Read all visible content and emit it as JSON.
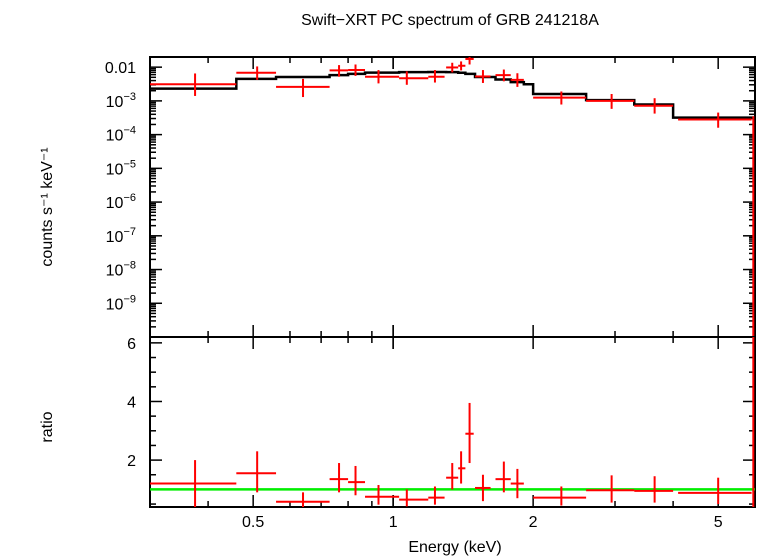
{
  "chart_data": {
    "type": "scatter",
    "title": "Swift−XRT PC spectrum of GRB 241218A",
    "xlabel": "Energy (keV)",
    "xscale": "log",
    "xlim": [
      0.3,
      6.0
    ],
    "xticks": [
      {
        "value": 0.5,
        "label": "0.5"
      },
      {
        "value": 1,
        "label": "1"
      },
      {
        "value": 2,
        "label": "2"
      },
      {
        "value": 5,
        "label": "5"
      }
    ],
    "panels": [
      {
        "ylabel": "counts s⁻¹ keV⁻¹",
        "yscale": "log",
        "ylim": [
          1e-10,
          0.02
        ],
        "ytick_labels": [
          {
            "value": 0.01,
            "base": "0.01",
            "exp": ""
          },
          {
            "value": 0.001,
            "base": "10",
            "exp": "−3"
          },
          {
            "value": 0.0001,
            "base": "10",
            "exp": "−4"
          },
          {
            "value": 1e-05,
            "base": "10",
            "exp": "−5"
          },
          {
            "value": 1e-06,
            "base": "10",
            "exp": "−6"
          },
          {
            "value": 1e-07,
            "base": "10",
            "exp": "−7"
          },
          {
            "value": 1e-08,
            "base": "10",
            "exp": "−8"
          },
          {
            "value": 1e-09,
            "base": "10",
            "exp": "−9"
          }
        ],
        "data": {
          "color": "#ff0000",
          "points": [
            {
              "x": 0.375,
              "xlo": 0.3,
              "xhi": 0.46,
              "y": 0.0031,
              "ylo": 0.0014,
              "yhi": 0.0065
            },
            {
              "x": 0.51,
              "xlo": 0.46,
              "xhi": 0.56,
              "y": 0.0068,
              "ylo": 0.0042,
              "yhi": 0.0105
            },
            {
              "x": 0.64,
              "xlo": 0.56,
              "xhi": 0.73,
              "y": 0.0026,
              "ylo": 0.0013,
              "yhi": 0.0045
            },
            {
              "x": 0.765,
              "xlo": 0.73,
              "xhi": 0.8,
              "y": 0.008,
              "ylo": 0.0052,
              "yhi": 0.0115
            },
            {
              "x": 0.83,
              "xlo": 0.8,
              "xhi": 0.87,
              "y": 0.0082,
              "ylo": 0.0055,
              "yhi": 0.012
            },
            {
              "x": 0.93,
              "xlo": 0.87,
              "xhi": 1.03,
              "y": 0.0052,
              "ylo": 0.0033,
              "yhi": 0.0082
            },
            {
              "x": 1.07,
              "xlo": 1.03,
              "xhi": 1.19,
              "y": 0.0047,
              "ylo": 0.003,
              "yhi": 0.0075
            },
            {
              "x": 1.23,
              "xlo": 1.19,
              "xhi": 1.29,
              "y": 0.0052,
              "ylo": 0.0035,
              "yhi": 0.0082
            },
            {
              "x": 1.34,
              "xlo": 1.3,
              "xhi": 1.38,
              "y": 0.0098,
              "ylo": 0.007,
              "yhi": 0.0135
            },
            {
              "x": 1.4,
              "xlo": 1.38,
              "xhi": 1.43,
              "y": 0.011,
              "ylo": 0.008,
              "yhi": 0.0148
            },
            {
              "x": 1.46,
              "xlo": 1.43,
              "xhi": 1.49,
              "y": 0.0175,
              "ylo": 0.012,
              "yhi": 0.0235
            },
            {
              "x": 1.56,
              "xlo": 1.5,
              "xhi": 1.62,
              "y": 0.0053,
              "ylo": 0.0034,
              "yhi": 0.0082
            },
            {
              "x": 1.73,
              "xlo": 1.66,
              "xhi": 1.79,
              "y": 0.0058,
              "ylo": 0.0038,
              "yhi": 0.0085
            },
            {
              "x": 1.85,
              "xlo": 1.79,
              "xhi": 1.91,
              "y": 0.0042,
              "ylo": 0.0026,
              "yhi": 0.0066
            },
            {
              "x": 2.3,
              "xlo": 2.0,
              "xhi": 2.6,
              "y": 0.00125,
              "ylo": 0.00078,
              "yhi": 0.0019
            },
            {
              "x": 2.95,
              "xlo": 2.6,
              "xhi": 3.3,
              "y": 0.001,
              "ylo": 0.00058,
              "yhi": 0.0016
            },
            {
              "x": 3.65,
              "xlo": 3.3,
              "xhi": 4.0,
              "y": 0.00072,
              "ylo": 0.00042,
              "yhi": 0.0012
            },
            {
              "x": 5.0,
              "xlo": 4.1,
              "xhi": 5.9,
              "y": 0.00028,
              "ylo": 0.00016,
              "yhi": 0.00045
            },
            {
              "x": 5.95,
              "xlo": 5.95,
              "xhi": 5.95,
              "y": 0.0002,
              "ylo": 1e-10,
              "yhi": 0.00035
            }
          ]
        },
        "model": {
          "color": "#000000",
          "steps": [
            {
              "xlo": 0.3,
              "xhi": 0.46,
              "y": 0.0023
            },
            {
              "xlo": 0.46,
              "xhi": 0.56,
              "y": 0.0045
            },
            {
              "xlo": 0.56,
              "xhi": 0.73,
              "y": 0.0051
            },
            {
              "xlo": 0.73,
              "xhi": 0.8,
              "y": 0.0058
            },
            {
              "xlo": 0.8,
              "xhi": 0.87,
              "y": 0.0063
            },
            {
              "xlo": 0.87,
              "xhi": 1.03,
              "y": 0.0069
            },
            {
              "xlo": 1.03,
              "xhi": 1.19,
              "y": 0.0071
            },
            {
              "xlo": 1.19,
              "xhi": 1.3,
              "y": 0.0072
            },
            {
              "xlo": 1.3,
              "xhi": 1.38,
              "y": 0.0071
            },
            {
              "xlo": 1.38,
              "xhi": 1.43,
              "y": 0.0068
            },
            {
              "xlo": 1.43,
              "xhi": 1.5,
              "y": 0.0063
            },
            {
              "xlo": 1.5,
              "xhi": 1.66,
              "y": 0.0051
            },
            {
              "xlo": 1.66,
              "xhi": 1.79,
              "y": 0.0043
            },
            {
              "xlo": 1.79,
              "xhi": 1.91,
              "y": 0.0036
            },
            {
              "xlo": 1.91,
              "xhi": 2.0,
              "y": 0.0031
            },
            {
              "xlo": 2.0,
              "xhi": 2.6,
              "y": 0.0016
            },
            {
              "xlo": 2.6,
              "xhi": 3.3,
              "y": 0.00105
            },
            {
              "xlo": 3.3,
              "xhi": 4.0,
              "y": 0.00078
            },
            {
              "xlo": 4.0,
              "xhi": 6.0,
              "y": 0.00032
            }
          ]
        }
      },
      {
        "ylabel": "ratio",
        "yscale": "linear",
        "ylim": [
          0.4,
          6.2
        ],
        "yticks": [
          {
            "value": 2,
            "label": "2"
          },
          {
            "value": 4,
            "label": "4"
          },
          {
            "value": 6,
            "label": "6"
          }
        ],
        "reference_line": {
          "y": 1,
          "color": "#00ee00"
        },
        "data": {
          "color": "#ff0000",
          "points": [
            {
              "x": 0.375,
              "xlo": 0.3,
              "xhi": 0.46,
              "y": 1.2,
              "ylo": 0.4,
              "yhi": 2.0
            },
            {
              "x": 0.51,
              "xlo": 0.46,
              "xhi": 0.56,
              "y": 1.55,
              "ylo": 0.9,
              "yhi": 2.3
            },
            {
              "x": 0.64,
              "xlo": 0.56,
              "xhi": 0.73,
              "y": 0.58,
              "ylo": 0.4,
              "yhi": 0.9
            },
            {
              "x": 0.765,
              "xlo": 0.73,
              "xhi": 0.8,
              "y": 1.35,
              "ylo": 0.9,
              "yhi": 1.9
            },
            {
              "x": 0.83,
              "xlo": 0.8,
              "xhi": 0.87,
              "y": 1.25,
              "ylo": 0.8,
              "yhi": 1.8
            },
            {
              "x": 0.93,
              "xlo": 0.87,
              "xhi": 1.03,
              "y": 0.75,
              "ylo": 0.48,
              "yhi": 1.15
            },
            {
              "x": 1.07,
              "xlo": 1.03,
              "xhi": 1.19,
              "y": 0.65,
              "ylo": 0.42,
              "yhi": 1.0
            },
            {
              "x": 1.23,
              "xlo": 1.19,
              "xhi": 1.29,
              "y": 0.72,
              "ylo": 0.48,
              "yhi": 1.1
            },
            {
              "x": 1.34,
              "xlo": 1.3,
              "xhi": 1.38,
              "y": 1.4,
              "ylo": 1.0,
              "yhi": 1.9
            },
            {
              "x": 1.4,
              "xlo": 1.38,
              "xhi": 1.43,
              "y": 1.72,
              "ylo": 1.2,
              "yhi": 2.3
            },
            {
              "x": 1.46,
              "xlo": 1.43,
              "xhi": 1.49,
              "y": 2.9,
              "ylo": 1.9,
              "yhi": 3.95
            },
            {
              "x": 1.56,
              "xlo": 1.5,
              "xhi": 1.62,
              "y": 1.05,
              "ylo": 0.6,
              "yhi": 1.5
            },
            {
              "x": 1.73,
              "xlo": 1.66,
              "xhi": 1.79,
              "y": 1.35,
              "ylo": 0.9,
              "yhi": 1.95
            },
            {
              "x": 1.85,
              "xlo": 1.79,
              "xhi": 1.91,
              "y": 1.2,
              "ylo": 0.7,
              "yhi": 1.7
            },
            {
              "x": 2.3,
              "xlo": 2.0,
              "xhi": 2.6,
              "y": 0.72,
              "ylo": 0.45,
              "yhi": 1.1
            },
            {
              "x": 2.95,
              "xlo": 2.6,
              "xhi": 3.3,
              "y": 0.97,
              "ylo": 0.55,
              "yhi": 1.48
            },
            {
              "x": 3.65,
              "xlo": 3.3,
              "xhi": 4.0,
              "y": 0.95,
              "ylo": 0.55,
              "yhi": 1.45
            },
            {
              "x": 5.0,
              "xlo": 4.1,
              "xhi": 5.9,
              "y": 0.88,
              "ylo": 0.5,
              "yhi": 1.4
            },
            {
              "x": 5.95,
              "xlo": 5.95,
              "xhi": 5.95,
              "y": 2.0,
              "ylo": 0.4,
              "yhi": 6.2
            }
          ]
        }
      }
    ]
  }
}
